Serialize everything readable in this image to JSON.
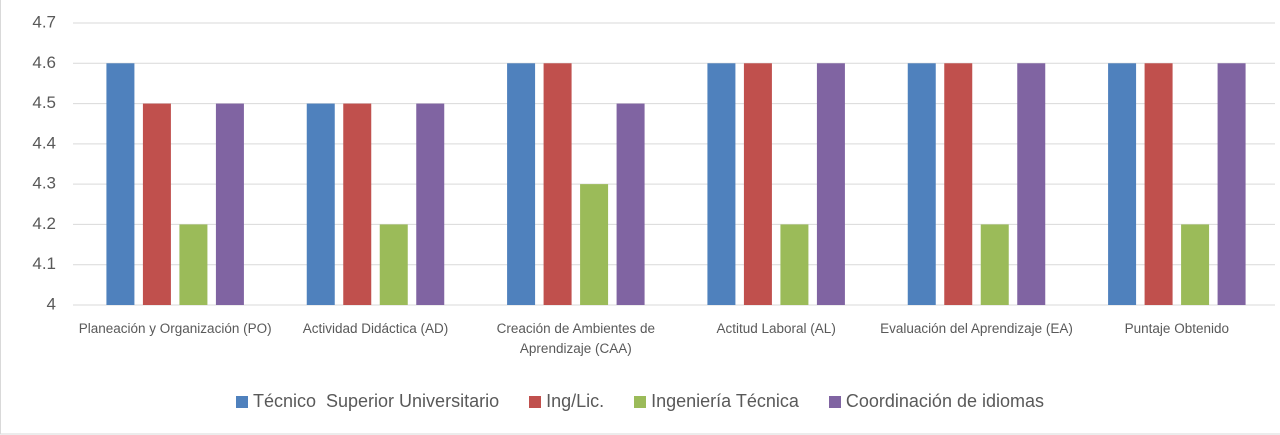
{
  "chart_data": {
    "type": "bar",
    "categories": [
      "Planeación y Organización (PO)",
      "Actividad Didáctica (AD)",
      "Creación de Ambientes de Aprendizaje (CAA)",
      "Actitud Laboral (AL)",
      "Evaluación del Aprendizaje (EA)",
      "Puntaje Obtenido"
    ],
    "series": [
      {
        "name": "Técnico  Superior Universitario",
        "color": "#4f81bd",
        "values": [
          4.6,
          4.5,
          4.6,
          4.6,
          4.6,
          4.6
        ]
      },
      {
        "name": "Ing/Lic.",
        "color": "#c0504d",
        "values": [
          4.5,
          4.5,
          4.6,
          4.6,
          4.6,
          4.6
        ]
      },
      {
        "name": "Ingeniería Técnica",
        "color": "#9bbb59",
        "values": [
          4.2,
          4.2,
          4.3,
          4.2,
          4.2,
          4.2
        ]
      },
      {
        "name": "Coordinación de idiomas",
        "color": "#8064a2",
        "values": [
          4.5,
          4.5,
          4.5,
          4.6,
          4.6,
          4.6
        ]
      }
    ],
    "ylim": [
      4,
      4.7
    ],
    "yticks": [
      4,
      4.1,
      4.2,
      4.3,
      4.4,
      4.5,
      4.6,
      4.7
    ],
    "grid": true,
    "legend": "bottom"
  }
}
